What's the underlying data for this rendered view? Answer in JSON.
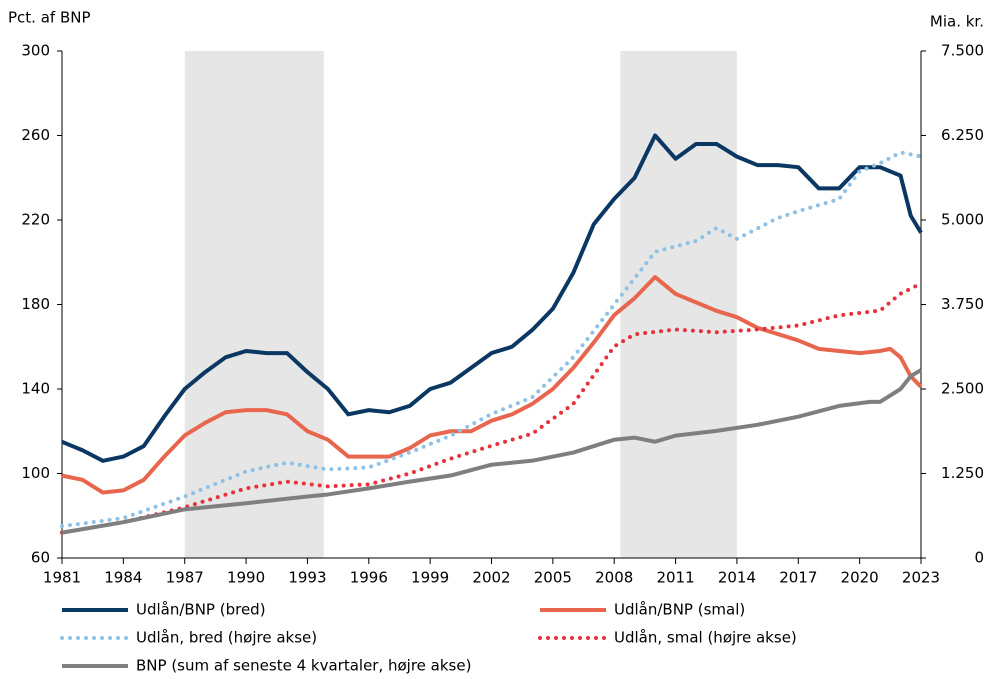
{
  "chart_data": {
    "type": "line",
    "y_label": "Pct. af BNP",
    "y2_label": "Mia. kr.",
    "xlim": [
      1981,
      2023
    ],
    "xticks": [
      1981,
      1984,
      1987,
      1990,
      1993,
      1996,
      1999,
      2002,
      2005,
      2008,
      2011,
      2014,
      2017,
      2020,
      2023
    ],
    "ylim": [
      60,
      300
    ],
    "yticks": [
      60,
      100,
      140,
      180,
      220,
      260,
      300
    ],
    "y2lim": [
      0,
      7500
    ],
    "y2ticks": [
      0,
      {
        "value": 1250,
        "label": "1.250"
      },
      {
        "value": 2500,
        "label": "2.500"
      },
      {
        "value": 3750,
        "label": "3.750"
      },
      {
        "value": 5000,
        "label": "5.000"
      },
      {
        "value": 6250,
        "label": "6.250"
      },
      {
        "value": 7500,
        "label": "7.500"
      }
    ],
    "shaded_periods": [
      [
        1987,
        1993.8
      ],
      [
        2008.3,
        2014
      ]
    ],
    "shade_color": "#e6e6e6",
    "series": [
      {
        "name": "Udlån/BNP (bred)",
        "color": "#0b3763",
        "style": "solid",
        "x": [
          1981,
          1982,
          1983,
          1984,
          1985,
          1986,
          1987,
          1988,
          1989,
          1990,
          1991,
          1992,
          1993,
          1994,
          1995,
          1996,
          1997,
          1998,
          1999,
          2000,
          2001,
          2002,
          2003,
          2004,
          2005,
          2006,
          2007,
          2008,
          2009,
          2010,
          2011,
          2012,
          2013,
          2014,
          2015,
          2016,
          2017,
          2018,
          2019,
          2020,
          2021,
          2022,
          2022.5,
          2023
        ],
        "values": [
          115,
          111,
          106,
          108,
          113,
          127,
          140,
          148,
          155,
          158,
          157,
          157,
          148,
          140,
          128,
          130,
          129,
          132,
          140,
          143,
          150,
          157,
          160,
          168,
          178,
          195,
          218,
          230,
          240,
          260,
          249,
          256,
          256,
          250,
          246,
          246,
          245,
          235,
          235,
          245,
          245,
          241,
          222,
          214
        ]
      },
      {
        "name": "Udlån/BNP (smal)",
        "color": "#e8664e",
        "style": "solid",
        "x": [
          1981,
          1982,
          1983,
          1984,
          1985,
          1986,
          1987,
          1988,
          1989,
          1990,
          1991,
          1992,
          1993,
          1994,
          1995,
          1996,
          1997,
          1998,
          1999,
          2000,
          2001,
          2002,
          2003,
          2004,
          2005,
          2006,
          2007,
          2008,
          2009,
          2010,
          2011,
          2012,
          2013,
          2014,
          2015,
          2016,
          2017,
          2018,
          2019,
          2020,
          2021,
          2021.5,
          2022,
          2022.5,
          2023
        ],
        "values": [
          99,
          97,
          91,
          92,
          97,
          108,
          118,
          124,
          129,
          130,
          130,
          128,
          120,
          116,
          108,
          108,
          108,
          112,
          118,
          120,
          120,
          125,
          128,
          133,
          140,
          150,
          162,
          175,
          183,
          193,
          185,
          181,
          177,
          174,
          169,
          166,
          163,
          159,
          158,
          157,
          158,
          159,
          155,
          146,
          141
        ]
      },
      {
        "name": "Udlån, bred (højre akse)",
        "color": "#8ec1e6",
        "style": "dotted",
        "axis": "y2",
        "x": [
          1981,
          1984,
          1987,
          1990,
          1992,
          1994,
          1996,
          1998,
          2000,
          2002,
          2004,
          2006,
          2008,
          2010,
          2012,
          2013,
          2014,
          2016,
          2017,
          2019,
          2020,
          2021,
          2022,
          2023
        ],
        "values": [
          470,
          590,
          910,
          1280,
          1410,
          1310,
          1340,
          1560,
          1810,
          2130,
          2380,
          2970,
          3750,
          4530,
          4690,
          4880,
          4720,
          5030,
          5130,
          5310,
          5720,
          5840,
          6000,
          5940
        ]
      },
      {
        "name": "Udlån, smal (højre akse)",
        "color": "#e8313a",
        "style": "dotted",
        "axis": "y2",
        "x": [
          1981,
          1984,
          1987,
          1990,
          1992,
          1994,
          1996,
          1998,
          2000,
          2002,
          2004,
          2006,
          2008,
          2009,
          2011,
          2013,
          2015,
          2017,
          2019,
          2021,
          2022,
          2023
        ],
        "values": [
          375,
          530,
          750,
          1030,
          1130,
          1060,
          1090,
          1250,
          1470,
          1660,
          1840,
          2280,
          3130,
          3310,
          3380,
          3340,
          3380,
          3440,
          3590,
          3660,
          3910,
          4060
        ]
      },
      {
        "name": "BNP (sum af seneste 4 kvartaler, højre akse)",
        "color": "#7f7f7f",
        "style": "solid",
        "axis": "y2",
        "x": [
          1981,
          1984,
          1987,
          1990,
          1993,
          1994,
          1996,
          1998,
          2000,
          2002,
          2004,
          2006,
          2008,
          2009,
          2010,
          2011,
          2013,
          2015,
          2017,
          2019,
          2020.5,
          2021,
          2022,
          2022.5,
          2023
        ],
        "values": [
          375,
          530,
          720,
          810,
          910,
          940,
          1030,
          1130,
          1220,
          1380,
          1440,
          1560,
          1750,
          1780,
          1720,
          1810,
          1880,
          1970,
          2090,
          2250,
          2310,
          2310,
          2500,
          2690,
          2780
        ]
      }
    ]
  }
}
